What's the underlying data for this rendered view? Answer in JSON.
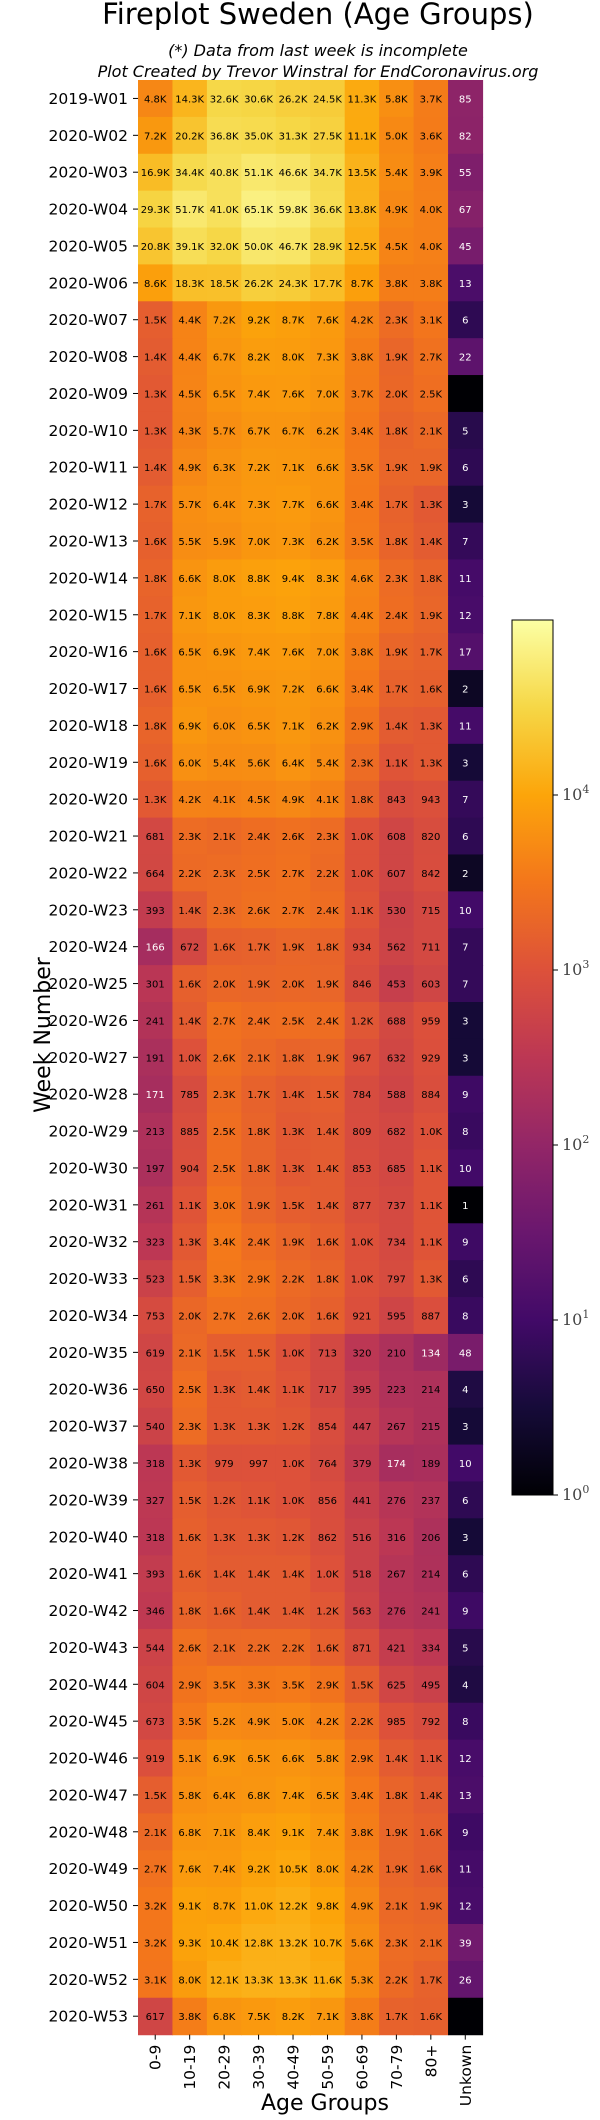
{
  "chart_data": {
    "type": "heatmap",
    "title": "Fireplot Sweden (Age Groups)",
    "subtitle_lines": [
      "(*) Data from last week is incomplete",
      "Plot Created by Trevor Winstral for EndCoronavirus.org"
    ],
    "xlabel": "Age Groups",
    "ylabel": "Week Number",
    "columns": [
      "0-9",
      "10-19",
      "20-29",
      "30-39",
      "40-49",
      "50-59",
      "60-69",
      "70-79",
      "80+",
      "Unkown"
    ],
    "rows": [
      "2019-W01",
      "2020-W02",
      "2020-W03",
      "2020-W04",
      "2020-W05",
      "2020-W06",
      "2020-W07",
      "2020-W08",
      "2020-W09",
      "2020-W10",
      "2020-W11",
      "2020-W12",
      "2020-W13",
      "2020-W14",
      "2020-W15",
      "2020-W16",
      "2020-W17",
      "2020-W18",
      "2020-W19",
      "2020-W20",
      "2020-W21",
      "2020-W22",
      "2020-W23",
      "2020-W24",
      "2020-W25",
      "2020-W26",
      "2020-W27",
      "2020-W28",
      "2020-W29",
      "2020-W30",
      "2020-W31",
      "2020-W32",
      "2020-W33",
      "2020-W34",
      "2020-W35",
      "2020-W36",
      "2020-W37",
      "2020-W38",
      "2020-W39",
      "2020-W40",
      "2020-W41",
      "2020-W42",
      "2020-W43",
      "2020-W44",
      "2020-W45",
      "2020-W46",
      "2020-W47",
      "2020-W48",
      "2020-W49",
      "2020-W50",
      "2020-W51",
      "2020-W52",
      "2020-W53"
    ],
    "values": [
      [
        "4.8K",
        "14.3K",
        "32.6K",
        "30.6K",
        "26.2K",
        "24.5K",
        "11.3K",
        "5.8K",
        "3.7K",
        "85"
      ],
      [
        "7.2K",
        "20.2K",
        "36.8K",
        "35.0K",
        "31.3K",
        "27.5K",
        "11.1K",
        "5.0K",
        "3.6K",
        "82"
      ],
      [
        "16.9K",
        "34.4K",
        "40.8K",
        "51.1K",
        "46.6K",
        "34.7K",
        "13.5K",
        "5.4K",
        "3.9K",
        "55"
      ],
      [
        "29.3K",
        "51.7K",
        "41.0K",
        "65.1K",
        "59.8K",
        "36.6K",
        "13.8K",
        "4.9K",
        "4.0K",
        "67"
      ],
      [
        "20.8K",
        "39.1K",
        "32.0K",
        "50.0K",
        "46.7K",
        "28.9K",
        "12.5K",
        "4.5K",
        "4.0K",
        "45"
      ],
      [
        "8.6K",
        "18.3K",
        "18.5K",
        "26.2K",
        "24.3K",
        "17.7K",
        "8.7K",
        "3.8K",
        "3.8K",
        "13"
      ],
      [
        "1.5K",
        "4.4K",
        "7.2K",
        "9.2K",
        "8.7K",
        "7.6K",
        "4.2K",
        "2.3K",
        "3.1K",
        "6"
      ],
      [
        "1.4K",
        "4.4K",
        "6.7K",
        "8.2K",
        "8.0K",
        "7.3K",
        "3.8K",
        "1.9K",
        "2.7K",
        "22"
      ],
      [
        "1.3K",
        "4.5K",
        "6.5K",
        "7.4K",
        "7.6K",
        "7.0K",
        "3.7K",
        "2.0K",
        "2.5K",
        ""
      ],
      [
        "1.3K",
        "4.3K",
        "5.7K",
        "6.7K",
        "6.7K",
        "6.2K",
        "3.4K",
        "1.8K",
        "2.1K",
        "5"
      ],
      [
        "1.4K",
        "4.9K",
        "6.3K",
        "7.2K",
        "7.1K",
        "6.6K",
        "3.5K",
        "1.9K",
        "1.9K",
        "6"
      ],
      [
        "1.7K",
        "5.7K",
        "6.4K",
        "7.3K",
        "7.7K",
        "6.6K",
        "3.4K",
        "1.7K",
        "1.3K",
        "3"
      ],
      [
        "1.6K",
        "5.5K",
        "5.9K",
        "7.0K",
        "7.3K",
        "6.2K",
        "3.5K",
        "1.8K",
        "1.4K",
        "7"
      ],
      [
        "1.8K",
        "6.6K",
        "8.0K",
        "8.8K",
        "9.4K",
        "8.3K",
        "4.6K",
        "2.3K",
        "1.8K",
        "11"
      ],
      [
        "1.7K",
        "7.1K",
        "8.0K",
        "8.3K",
        "8.8K",
        "7.8K",
        "4.4K",
        "2.4K",
        "1.9K",
        "12"
      ],
      [
        "1.6K",
        "6.5K",
        "6.9K",
        "7.4K",
        "7.6K",
        "7.0K",
        "3.8K",
        "1.9K",
        "1.7K",
        "17"
      ],
      [
        "1.6K",
        "6.5K",
        "6.5K",
        "6.9K",
        "7.2K",
        "6.6K",
        "3.4K",
        "1.7K",
        "1.6K",
        "2"
      ],
      [
        "1.8K",
        "6.9K",
        "6.0K",
        "6.5K",
        "7.1K",
        "6.2K",
        "2.9K",
        "1.4K",
        "1.3K",
        "11"
      ],
      [
        "1.6K",
        "6.0K",
        "5.4K",
        "5.6K",
        "6.4K",
        "5.4K",
        "2.3K",
        "1.1K",
        "1.3K",
        "3"
      ],
      [
        "1.3K",
        "4.2K",
        "4.1K",
        "4.5K",
        "4.9K",
        "4.1K",
        "1.8K",
        "843",
        "943",
        "7"
      ],
      [
        "681",
        "2.3K",
        "2.1K",
        "2.4K",
        "2.6K",
        "2.3K",
        "1.0K",
        "608",
        "820",
        "6"
      ],
      [
        "664",
        "2.2K",
        "2.3K",
        "2.5K",
        "2.7K",
        "2.2K",
        "1.0K",
        "607",
        "842",
        "2"
      ],
      [
        "393",
        "1.4K",
        "2.3K",
        "2.6K",
        "2.7K",
        "2.4K",
        "1.1K",
        "530",
        "715",
        "10"
      ],
      [
        "166",
        "672",
        "1.6K",
        "1.7K",
        "1.9K",
        "1.8K",
        "934",
        "562",
        "711",
        "7"
      ],
      [
        "301",
        "1.6K",
        "2.0K",
        "1.9K",
        "2.0K",
        "1.9K",
        "846",
        "453",
        "603",
        "7"
      ],
      [
        "241",
        "1.4K",
        "2.7K",
        "2.4K",
        "2.5K",
        "2.4K",
        "1.2K",
        "688",
        "959",
        "3"
      ],
      [
        "191",
        "1.0K",
        "2.6K",
        "2.1K",
        "1.8K",
        "1.9K",
        "967",
        "632",
        "929",
        "3"
      ],
      [
        "171",
        "785",
        "2.3K",
        "1.7K",
        "1.4K",
        "1.5K",
        "784",
        "588",
        "884",
        "9"
      ],
      [
        "213",
        "885",
        "2.5K",
        "1.8K",
        "1.3K",
        "1.4K",
        "809",
        "682",
        "1.0K",
        "8"
      ],
      [
        "197",
        "904",
        "2.5K",
        "1.8K",
        "1.3K",
        "1.4K",
        "853",
        "685",
        "1.1K",
        "10"
      ],
      [
        "261",
        "1.1K",
        "3.0K",
        "1.9K",
        "1.5K",
        "1.4K",
        "877",
        "737",
        "1.1K",
        "1"
      ],
      [
        "323",
        "1.3K",
        "3.4K",
        "2.4K",
        "1.9K",
        "1.6K",
        "1.0K",
        "734",
        "1.1K",
        "9"
      ],
      [
        "523",
        "1.5K",
        "3.3K",
        "2.9K",
        "2.2K",
        "1.8K",
        "1.0K",
        "797",
        "1.3K",
        "6"
      ],
      [
        "753",
        "2.0K",
        "2.7K",
        "2.6K",
        "2.0K",
        "1.6K",
        "921",
        "595",
        "887",
        "8"
      ],
      [
        "619",
        "2.1K",
        "1.5K",
        "1.5K",
        "1.0K",
        "713",
        "320",
        "210",
        "134",
        "48"
      ],
      [
        "650",
        "2.5K",
        "1.3K",
        "1.4K",
        "1.1K",
        "717",
        "395",
        "223",
        "214",
        "4"
      ],
      [
        "540",
        "2.3K",
        "1.3K",
        "1.3K",
        "1.2K",
        "854",
        "447",
        "267",
        "215",
        "3"
      ],
      [
        "318",
        "1.3K",
        "979",
        "997",
        "1.0K",
        "764",
        "379",
        "174",
        "189",
        "10"
      ],
      [
        "327",
        "1.5K",
        "1.2K",
        "1.1K",
        "1.0K",
        "856",
        "441",
        "276",
        "237",
        "6"
      ],
      [
        "318",
        "1.6K",
        "1.3K",
        "1.3K",
        "1.2K",
        "862",
        "516",
        "316",
        "206",
        "3"
      ],
      [
        "393",
        "1.6K",
        "1.4K",
        "1.4K",
        "1.4K",
        "1.0K",
        "518",
        "267",
        "214",
        "6"
      ],
      [
        "346",
        "1.8K",
        "1.6K",
        "1.4K",
        "1.4K",
        "1.2K",
        "563",
        "276",
        "241",
        "9"
      ],
      [
        "544",
        "2.6K",
        "2.1K",
        "2.2K",
        "2.2K",
        "1.6K",
        "871",
        "421",
        "334",
        "5"
      ],
      [
        "604",
        "2.9K",
        "3.5K",
        "3.3K",
        "3.5K",
        "2.9K",
        "1.5K",
        "625",
        "495",
        "4"
      ],
      [
        "673",
        "3.5K",
        "5.2K",
        "4.9K",
        "5.0K",
        "4.2K",
        "2.2K",
        "985",
        "792",
        "8"
      ],
      [
        "919",
        "5.1K",
        "6.9K",
        "6.5K",
        "6.6K",
        "5.8K",
        "2.9K",
        "1.4K",
        "1.1K",
        "12"
      ],
      [
        "1.5K",
        "5.8K",
        "6.4K",
        "6.8K",
        "7.4K",
        "6.5K",
        "3.4K",
        "1.8K",
        "1.4K",
        "13"
      ],
      [
        "2.1K",
        "6.8K",
        "7.1K",
        "8.4K",
        "9.1K",
        "7.4K",
        "3.8K",
        "1.9K",
        "1.6K",
        "9"
      ],
      [
        "2.7K",
        "7.6K",
        "7.4K",
        "9.2K",
        "10.5K",
        "8.0K",
        "4.2K",
        "1.9K",
        "1.6K",
        "11"
      ],
      [
        "3.2K",
        "9.1K",
        "8.7K",
        "11.0K",
        "12.2K",
        "9.8K",
        "4.9K",
        "2.1K",
        "1.9K",
        "12"
      ],
      [
        "3.2K",
        "9.3K",
        "10.4K",
        "12.8K",
        "13.2K",
        "10.7K",
        "5.6K",
        "2.3K",
        "2.1K",
        "39"
      ],
      [
        "3.1K",
        "8.0K",
        "12.1K",
        "13.3K",
        "13.3K",
        "11.6K",
        "5.3K",
        "2.2K",
        "1.7K",
        "26"
      ],
      [
        "617",
        "3.8K",
        "6.8K",
        "7.5K",
        "8.2K",
        "7.1K",
        "3.8K",
        "1.7K",
        "1.6K",
        ""
      ]
    ],
    "colorbar": {
      "scale": "log",
      "range": [
        1,
        100000
      ],
      "ticks": [
        {
          "value": 1,
          "base": "10",
          "exp": "0"
        },
        {
          "value": 10,
          "base": "10",
          "exp": "1"
        },
        {
          "value": 100,
          "base": "10",
          "exp": "2"
        },
        {
          "value": 1000,
          "base": "10",
          "exp": "3"
        },
        {
          "value": 10000,
          "base": "10",
          "exp": "4"
        }
      ],
      "colormap": "inferno"
    }
  }
}
